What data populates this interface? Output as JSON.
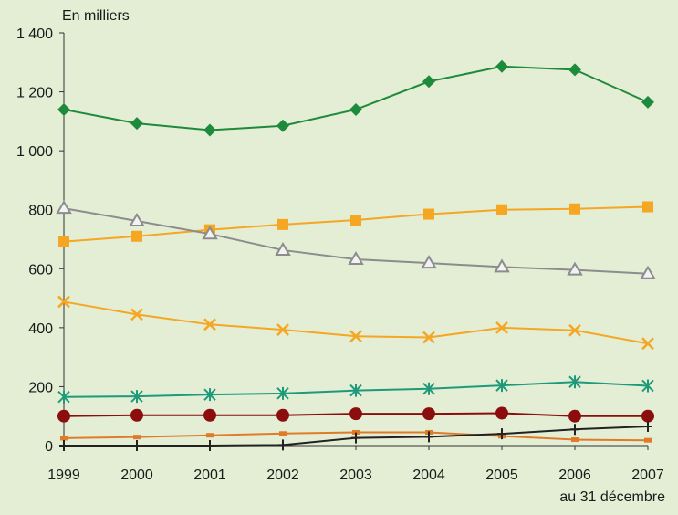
{
  "chart_data": {
    "type": "line",
    "title": "",
    "ylabel": "En milliers",
    "xlabel": "au 31 décembre",
    "ylim": [
      0,
      1400
    ],
    "y_ticks": [
      {
        "value": 0,
        "label": "0"
      },
      {
        "value": 200,
        "label": "200"
      },
      {
        "value": 400,
        "label": "400"
      },
      {
        "value": 600,
        "label": "600"
      },
      {
        "value": 800,
        "label": "800"
      },
      {
        "value": 1000,
        "label": "1 000"
      },
      {
        "value": 1200,
        "label": "1 200"
      },
      {
        "value": 1400,
        "label": "1 400"
      }
    ],
    "categories": [
      "1999",
      "2000",
      "2001",
      "2002",
      "2003",
      "2004",
      "2005",
      "2006",
      "2007"
    ],
    "grid": false,
    "legend": "none",
    "series": [
      {
        "color": "#1e8a3c",
        "marker": "diamond",
        "values": [
          1140,
          1093,
          1070,
          1085,
          1140,
          1235,
          1286,
          1275,
          1165
        ]
      },
      {
        "color": "#f5a623",
        "marker": "square",
        "values": [
          692,
          710,
          732,
          750,
          765,
          785,
          800,
          803,
          810
        ]
      },
      {
        "color": "#8c8c8c",
        "marker": "triangle",
        "values": [
          805,
          762,
          718,
          663,
          632,
          619,
          606,
          596,
          583
        ]
      },
      {
        "color": "#f5a623",
        "marker": "cross",
        "values": [
          488,
          445,
          411,
          393,
          371,
          367,
          400,
          391,
          346
        ]
      },
      {
        "color": "#1e9a7a",
        "marker": "star",
        "values": [
          165,
          167,
          173,
          177,
          187,
          193,
          204,
          216,
          203
        ]
      },
      {
        "color": "#8b0d0d",
        "marker": "circle",
        "values": [
          100,
          103,
          103,
          103,
          108,
          108,
          110,
          100,
          100
        ]
      },
      {
        "color": "#e07b2a",
        "marker": "dash",
        "values": [
          25,
          29,
          35,
          41,
          45,
          45,
          32,
          20,
          18
        ]
      },
      {
        "color": "#222222",
        "marker": "plus",
        "values": [
          0,
          0,
          0,
          2,
          26,
          30,
          40,
          55,
          65
        ]
      }
    ]
  }
}
